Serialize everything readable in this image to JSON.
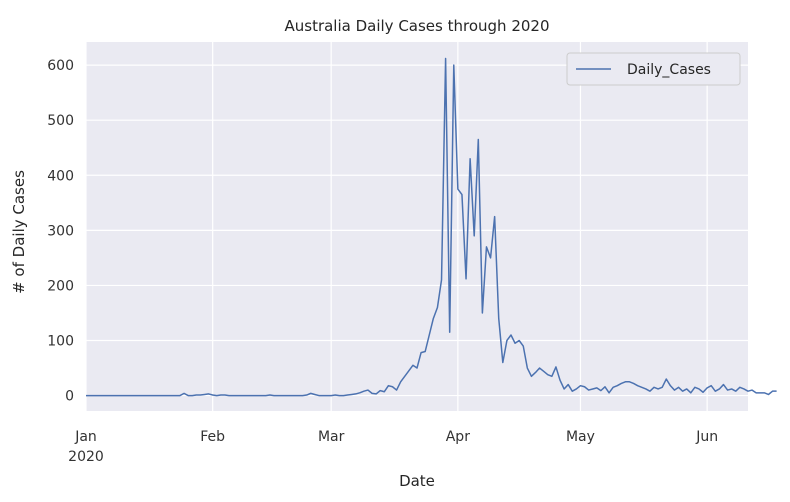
{
  "chart_data": {
    "type": "line",
    "title": "Australia Daily Cases through 2020",
    "xlabel": "Date",
    "ylabel": "# of Daily Cases",
    "legend": {
      "placement": "top-right",
      "entries": [
        "Daily_Cases"
      ]
    },
    "grid": true,
    "x_range": [
      "2020-01-01",
      "2020-06-11"
    ],
    "ylim": [
      -28,
      642
    ],
    "y_ticks": [
      0,
      100,
      200,
      300,
      400,
      500,
      600
    ],
    "x_ticks": [
      {
        "date": "2020-01-01",
        "label": "Jan",
        "sublabel": "2020"
      },
      {
        "date": "2020-02-01",
        "label": "Feb",
        "sublabel": ""
      },
      {
        "date": "2020-03-01",
        "label": "Mar",
        "sublabel": ""
      },
      {
        "date": "2020-04-01",
        "label": "Apr",
        "sublabel": ""
      },
      {
        "date": "2020-05-01",
        "label": "May",
        "sublabel": ""
      },
      {
        "date": "2020-06-01",
        "label": "Jun",
        "sublabel": ""
      }
    ],
    "colors": {
      "background": "#eaeaf2",
      "grid": "#ffffff",
      "line": "#4c72b0"
    },
    "series": [
      {
        "name": "Daily_Cases",
        "start_date": "2020-01-01",
        "values": [
          0,
          0,
          0,
          0,
          0,
          0,
          0,
          0,
          0,
          0,
          0,
          0,
          0,
          0,
          0,
          0,
          0,
          0,
          0,
          0,
          0,
          0,
          0,
          0,
          4,
          0,
          0,
          1,
          1,
          2,
          3,
          1,
          0,
          1,
          1,
          0,
          0,
          0,
          0,
          0,
          0,
          0,
          0,
          0,
          0,
          1,
          0,
          0,
          0,
          0,
          0,
          0,
          0,
          0,
          1,
          4,
          2,
          0,
          0,
          0,
          0,
          1,
          0,
          0,
          1,
          2,
          3,
          5,
          8,
          10,
          4,
          3,
          9,
          7,
          18,
          16,
          10,
          25,
          35,
          45,
          55,
          50,
          78,
          80,
          110,
          140,
          160,
          210,
          612,
          115,
          600,
          375,
          365,
          212,
          430,
          290,
          465,
          150,
          270,
          250,
          325,
          140,
          60,
          100,
          110,
          95,
          100,
          90,
          50,
          35,
          42,
          50,
          44,
          38,
          35,
          52,
          28,
          12,
          20,
          8,
          12,
          18,
          16,
          10,
          12,
          14,
          9,
          16,
          5,
          15,
          18,
          22,
          25,
          25,
          22,
          18,
          15,
          12,
          8,
          15,
          12,
          15,
          30,
          18,
          10,
          15,
          8,
          12,
          5,
          15,
          12,
          6,
          14,
          18,
          8,
          12,
          20,
          10,
          12,
          8,
          15,
          12,
          8,
          10,
          5,
          5,
          5,
          2,
          8,
          8
        ]
      }
    ]
  }
}
